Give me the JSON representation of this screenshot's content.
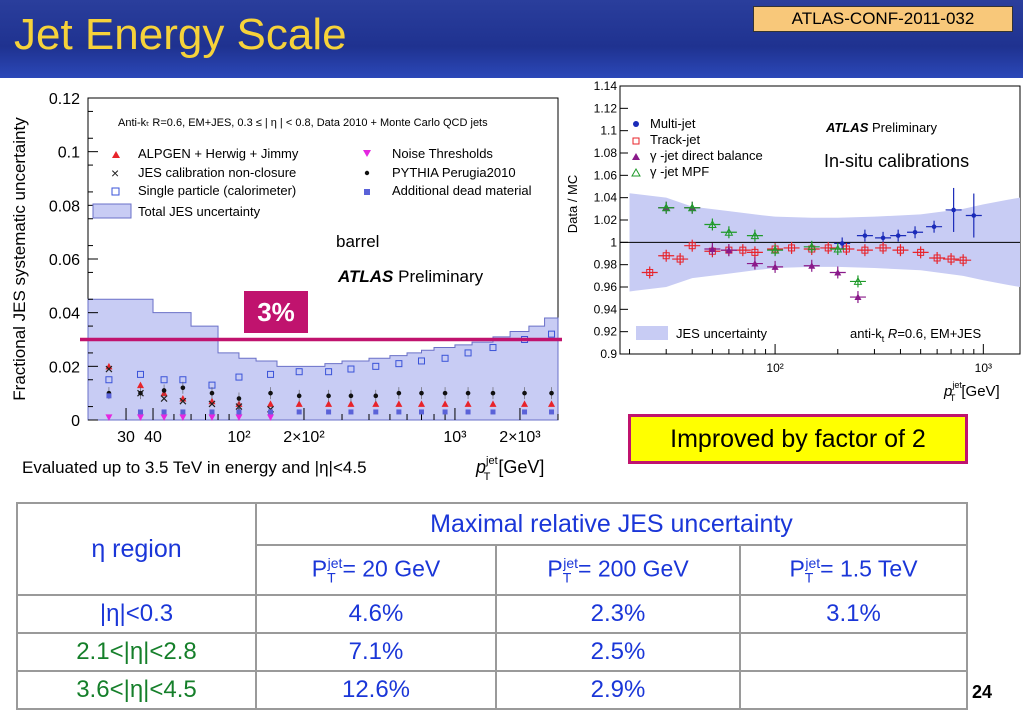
{
  "slide": {
    "title": "Jet Energy Scale",
    "conf_label": "ATLAS-CONF-2011-032",
    "page_number": "24"
  },
  "left_plot": {
    "ylabel": "Fractional JES systematic uncertainty",
    "xlabel_main": "p",
    "xlabel_sup": "jet",
    "xlabel_sub": "T",
    "xlabel_unit": "[GeV]",
    "caption": "Anti-kₜ R=0.6, EM+JES, 0.3 ≤ | η | < 0.8, Data 2010 + Monte Carlo QCD jets",
    "y_ticks": [
      "0",
      "0.02",
      "0.04",
      "0.06",
      "0.08",
      "0.1",
      "0.12"
    ],
    "x_ticks": [
      "30",
      "40",
      "10²",
      "2×10²",
      "10³",
      "2×10³"
    ],
    "legend": [
      {
        "label": "ALPGEN + Herwig + Jimmy",
        "marker": "triangle-up",
        "color": "#e8232a"
      },
      {
        "label": "JES calibration non-closure",
        "marker": "cross",
        "color": "#222222"
      },
      {
        "label": "Single particle (calorimeter)",
        "marker": "open-square",
        "color": "#3a53d8"
      },
      {
        "label": "Total JES uncertainty",
        "marker": "band",
        "color": "#c8ccf4"
      },
      {
        "label": "Noise Thresholds",
        "marker": "triangle-down",
        "color": "#e427e0"
      },
      {
        "label": "PYTHIA Perugia2010",
        "marker": "dot",
        "color": "#111111"
      },
      {
        "label": "Additional dead material",
        "marker": "filled-square",
        "color": "#5a62d8"
      }
    ],
    "region_label": "barrel",
    "atlas_label": "ATLAS",
    "prelim_label": "Preliminary",
    "annotation": "3%"
  },
  "chart_data": [
    {
      "type": "scatter",
      "x_scale": "log",
      "x_range": [
        20,
        3000
      ],
      "ylim": [
        0,
        0.12
      ],
      "series": [
        {
          "name": "Total JES uncertainty",
          "kind": "band",
          "x": [
            20,
            30,
            40,
            50,
            60,
            80,
            100,
            120,
            150,
            200,
            250,
            300,
            400,
            500,
            600,
            700,
            800,
            1000,
            1200,
            1500,
            1800,
            2200,
            2600,
            3000
          ],
          "values": [
            0.045,
            0.045,
            0.04,
            0.04,
            0.035,
            0.025,
            0.023,
            0.022,
            0.02,
            0.02,
            0.021,
            0.022,
            0.023,
            0.024,
            0.025,
            0.026,
            0.027,
            0.028,
            0.029,
            0.031,
            0.033,
            0.035,
            0.038,
            0.038
          ]
        },
        {
          "name": "ALPGEN + Herwig + Jimmy",
          "x": [
            25,
            35,
            45,
            55,
            75,
            100,
            140,
            190,
            260,
            330,
            430,
            550,
            700,
            900,
            1150,
            1500,
            2100,
            2800
          ],
          "values": [
            0.02,
            0.013,
            0.01,
            0.008,
            0.007,
            0.006,
            0.006,
            0.006,
            0.006,
            0.006,
            0.006,
            0.006,
            0.006,
            0.006,
            0.006,
            0.006,
            0.006,
            0.006
          ]
        },
        {
          "name": "JES calibration non-closure",
          "x": [
            25,
            35,
            45,
            55,
            75,
            100,
            140
          ],
          "values": [
            0.019,
            0.01,
            0.008,
            0.007,
            0.006,
            0.005,
            0.004
          ]
        },
        {
          "name": "Single particle (calorimeter)",
          "x": [
            25,
            35,
            45,
            55,
            75,
            100,
            140,
            190,
            260,
            330,
            430,
            550,
            700,
            900,
            1150,
            1500,
            2100,
            2800
          ],
          "values": [
            0.015,
            0.017,
            0.015,
            0.015,
            0.013,
            0.016,
            0.017,
            0.018,
            0.018,
            0.019,
            0.02,
            0.021,
            0.022,
            0.023,
            0.025,
            0.027,
            0.03,
            0.032
          ]
        },
        {
          "name": "Noise Thresholds",
          "x": [
            25,
            35,
            45,
            55,
            75,
            100,
            140
          ],
          "values": [
            0.001,
            0.001,
            0.001,
            0.001,
            0.001,
            0.001,
            0.001
          ]
        },
        {
          "name": "PYTHIA Perugia2010",
          "x": [
            25,
            35,
            45,
            55,
            75,
            100,
            140,
            190,
            260,
            330,
            430,
            550,
            700,
            900,
            1150,
            1500,
            2100,
            2800
          ],
          "values": [
            0.01,
            0.01,
            0.011,
            0.012,
            0.01,
            0.008,
            0.01,
            0.009,
            0.009,
            0.009,
            0.009,
            0.01,
            0.01,
            0.01,
            0.01,
            0.01,
            0.01,
            0.01
          ]
        },
        {
          "name": "Additional dead material",
          "x": [
            25,
            35,
            45,
            55,
            75,
            100,
            140,
            190,
            260,
            330,
            430,
            550,
            700,
            900,
            1150,
            1500,
            2100,
            2800
          ],
          "values": [
            0.009,
            0.003,
            0.003,
            0.003,
            0.003,
            0.003,
            0.003,
            0.003,
            0.003,
            0.003,
            0.003,
            0.003,
            0.003,
            0.003,
            0.003,
            0.003,
            0.003,
            0.003
          ]
        }
      ],
      "reference_lines": [
        {
          "y": 0.03,
          "label": "3%"
        }
      ]
    },
    {
      "type": "scatter",
      "ylabel": "Data / MC",
      "x_scale": "log",
      "x_range": [
        18,
        1500
      ],
      "ylim": [
        0.9,
        1.14
      ],
      "x_ticks": [
        "10²",
        "10³"
      ],
      "y_ticks": [
        "0.9",
        "0.92",
        "0.94",
        "0.96",
        "0.98",
        "1",
        "1.02",
        "1.04",
        "1.06",
        "1.08",
        "1.1",
        "1.12",
        "1.14"
      ],
      "series": [
        {
          "name": "JES uncertainty",
          "kind": "band",
          "x": [
            20,
            30,
            40,
            60,
            80,
            100,
            150,
            200,
            300,
            500,
            800,
            1000,
            1300,
            1500
          ],
          "lower": [
            0.956,
            0.96,
            0.968,
            0.972,
            0.975,
            0.977,
            0.978,
            0.978,
            0.977,
            0.975,
            0.97,
            0.966,
            0.962,
            0.96
          ],
          "upper": [
            1.044,
            1.04,
            1.032,
            1.028,
            1.025,
            1.023,
            1.022,
            1.022,
            1.023,
            1.025,
            1.03,
            1.034,
            1.038,
            1.04
          ]
        },
        {
          "name": "Multi-jet",
          "x": [
            210,
            270,
            330,
            390,
            470,
            580,
            720,
            900
          ],
          "values": [
            0.999,
            1.006,
            1.004,
            1.006,
            1.009,
            1.014,
            1.029,
            1.024
          ]
        },
        {
          "name": "Track-jet",
          "x": [
            25,
            30,
            35,
            40,
            50,
            60,
            70,
            80,
            100,
            120,
            150,
            180,
            220,
            270,
            330,
            400,
            500,
            600,
            700,
            800
          ],
          "values": [
            0.973,
            0.988,
            0.985,
            0.997,
            0.992,
            0.993,
            0.993,
            0.991,
            0.994,
            0.995,
            0.994,
            0.995,
            0.994,
            0.993,
            0.995,
            0.993,
            0.991,
            0.986,
            0.985,
            0.984
          ]
        },
        {
          "name": "γ -jet direct balance",
          "x": [
            30,
            40,
            50,
            60,
            80,
            100,
            150,
            200,
            250
          ],
          "values": [
            1.031,
            1.031,
            0.994,
            0.993,
            0.981,
            0.978,
            0.979,
            0.973,
            0.951
          ]
        },
        {
          "name": "γ -jet MPF",
          "x": [
            30,
            40,
            50,
            60,
            80,
            100,
            150,
            200,
            250
          ],
          "values": [
            1.031,
            1.031,
            1.016,
            1.009,
            1.006,
            0.993,
            0.996,
            0.994,
            0.965
          ]
        }
      ]
    }
  ],
  "right_plot": {
    "legend": [
      {
        "label": "Multi-jet",
        "marker": "dot",
        "color": "#1a2ab8"
      },
      {
        "label": "Track-jet",
        "marker": "open-square",
        "color": "#e8232a"
      },
      {
        "label": "γ -jet direct balance",
        "marker": "triangle-up",
        "color": "#8a1a8a"
      },
      {
        "label": "γ -jet MPF",
        "marker": "open-triangle",
        "color": "#1f9a2a"
      }
    ],
    "band_legend": "JES uncertainty",
    "atlas_label": "ATLAS",
    "prelim_label": "Preliminary",
    "algo_pre": "anti-k",
    "algo_sub": "t",
    "algo_r": " R",
    "algo_post": "=0.6, EM+JES",
    "xlabel_main": "p",
    "xlabel_sup": "jet",
    "xlabel_sub": "T",
    "xlabel_unit": "[GeV]",
    "insitu_label": "In-situ calibrations"
  },
  "improved_label": "Improved by factor of 2",
  "evaluated_label": "Evaluated up to 3.5 TeV in energy and |η|<4.5",
  "table": {
    "eta_header": "η region",
    "main_header": "Maximal relative JES uncertainty",
    "pt_cols": [
      {
        "p": "P",
        "sub": "T",
        "sup": "jet",
        "rest": "= 20 GeV"
      },
      {
        "p": "P",
        "sub": "T",
        "sup": "jet",
        "rest": "= 200 GeV"
      },
      {
        "p": "P",
        "sub": "T",
        "sup": "jet",
        "rest": "= 1.5 TeV"
      }
    ],
    "rows": [
      {
        "region": "|η|<0.3",
        "v20": "4.6%",
        "v200": "2.3%",
        "v1500": "3.1%"
      },
      {
        "region": "2.1<|η|<2.8",
        "v20": "7.1%",
        "v200": "2.5%",
        "v1500": ""
      },
      {
        "region": "3.6<|η|<4.5",
        "v20": "12.6%",
        "v200": "2.9%",
        "v1500": ""
      }
    ]
  }
}
